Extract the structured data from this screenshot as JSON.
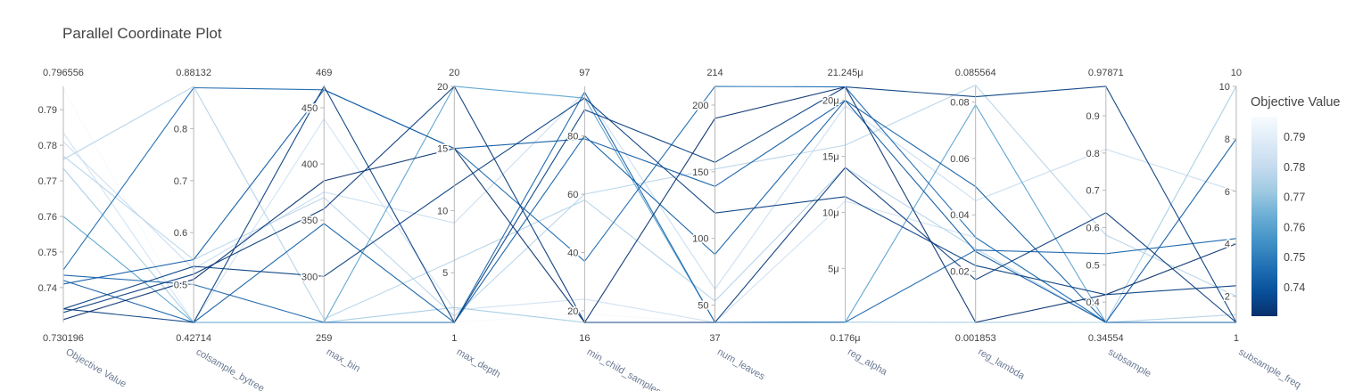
{
  "chart_data": {
    "type": "parallel_coordinates",
    "title": "Parallel Coordinate Plot",
    "colorbar": {
      "title": "Objective Value",
      "colorscale": [
        "#08306b",
        "#08519c",
        "#2171b5",
        "#4292c6",
        "#6baed6",
        "#9ecae1",
        "#c6dbef",
        "#deebf7",
        "#f7fbff"
      ],
      "ticks": [
        "0.79",
        "0.78",
        "0.77",
        "0.76",
        "0.75",
        "0.74"
      ],
      "range": [
        0.730196,
        0.796556
      ]
    },
    "axes": [
      {
        "label": "Objective Value",
        "min_label": "0.730196",
        "max_label": "0.796556",
        "range": [
          0.730196,
          0.796556
        ],
        "ticks": [
          {
            "v": 0.74,
            "t": "0.74"
          },
          {
            "v": 0.75,
            "t": "0.75"
          },
          {
            "v": 0.76,
            "t": "0.76"
          },
          {
            "v": 0.77,
            "t": "0.77"
          },
          {
            "v": 0.78,
            "t": "0.78"
          },
          {
            "v": 0.79,
            "t": "0.79"
          }
        ]
      },
      {
        "label": "colsample_bytree",
        "min_label": "0.42714",
        "max_label": "0.88132",
        "range": [
          0.42714,
          0.88132
        ],
        "ticks": [
          {
            "v": 0.5,
            "t": "0.5"
          },
          {
            "v": 0.6,
            "t": "0.6"
          },
          {
            "v": 0.7,
            "t": "0.7"
          },
          {
            "v": 0.8,
            "t": "0.8"
          }
        ]
      },
      {
        "label": "max_bin",
        "min_label": "259",
        "max_label": "469",
        "range": [
          259,
          469
        ],
        "ticks": [
          {
            "v": 300,
            "t": "300"
          },
          {
            "v": 350,
            "t": "350"
          },
          {
            "v": 400,
            "t": "400"
          },
          {
            "v": 450,
            "t": "450"
          }
        ]
      },
      {
        "label": "max_depth",
        "min_label": "1",
        "max_label": "20",
        "range": [
          1,
          20
        ],
        "ticks": [
          {
            "v": 5,
            "t": "5"
          },
          {
            "v": 10,
            "t": "10"
          },
          {
            "v": 15,
            "t": "15"
          },
          {
            "v": 20,
            "t": "20"
          }
        ]
      },
      {
        "label": "min_child_samples",
        "min_label": "16",
        "max_label": "97",
        "range": [
          16,
          97
        ],
        "ticks": [
          {
            "v": 20,
            "t": "20"
          },
          {
            "v": 40,
            "t": "40"
          },
          {
            "v": 60,
            "t": "60"
          },
          {
            "v": 80,
            "t": "80"
          }
        ]
      },
      {
        "label": "num_leaves",
        "min_label": "37",
        "max_label": "214",
        "range": [
          37,
          214
        ],
        "ticks": [
          {
            "v": 50,
            "t": "50"
          },
          {
            "v": 100,
            "t": "100"
          },
          {
            "v": 150,
            "t": "150"
          },
          {
            "v": 200,
            "t": "200"
          }
        ]
      },
      {
        "label": "reg_alpha",
        "min_label": "0.176μ",
        "max_label": "21.245μ",
        "range": [
          0.176,
          21.245
        ],
        "ticks": [
          {
            "v": 5,
            "t": "5μ"
          },
          {
            "v": 10,
            "t": "10μ"
          },
          {
            "v": 15,
            "t": "15μ"
          },
          {
            "v": 20,
            "t": "20μ"
          }
        ]
      },
      {
        "label": "reg_lambda",
        "min_label": "0.001853",
        "max_label": "0.085564",
        "range": [
          0.001853,
          0.085564
        ],
        "ticks": [
          {
            "v": 0.02,
            "t": "0.02"
          },
          {
            "v": 0.04,
            "t": "0.04"
          },
          {
            "v": 0.06,
            "t": "0.06"
          },
          {
            "v": 0.08,
            "t": "0.08"
          }
        ]
      },
      {
        "label": "subsample",
        "min_label": "0.34554",
        "max_label": "0.97871",
        "range": [
          0.34554,
          0.97871
        ],
        "ticks": [
          {
            "v": 0.4,
            "t": "0.4"
          },
          {
            "v": 0.5,
            "t": "0.5"
          },
          {
            "v": 0.6,
            "t": "0.6"
          },
          {
            "v": 0.7,
            "t": "0.7"
          },
          {
            "v": 0.8,
            "t": "0.8"
          },
          {
            "v": 0.9,
            "t": "0.9"
          }
        ]
      },
      {
        "label": "subsample_freq",
        "min_label": "1",
        "max_label": "10",
        "range": [
          1,
          10
        ],
        "ticks": [
          {
            "v": 2,
            "t": "2"
          },
          {
            "v": 4,
            "t": "4"
          },
          {
            "v": 6,
            "t": "6"
          },
          {
            "v": 8,
            "t": "8"
          },
          {
            "v": 10,
            "t": "10"
          }
        ]
      }
    ],
    "lines": [
      [
        0.7735,
        0.4271,
        259,
        2.2,
        16,
        37,
        0.2,
        0.0019,
        0.3455,
        10.0
      ],
      [
        0.796,
        0.4271,
        259,
        1.0,
        19,
        37,
        0.2,
        0.0019,
        0.3455,
        1.0
      ],
      [
        0.7835,
        0.4271,
        440,
        2.0,
        24,
        37,
        11.0,
        0.032,
        0.3455,
        1.0
      ],
      [
        0.7435,
        0.5,
        259,
        1.0,
        95,
        37,
        0.2,
        0.0275,
        0.53,
        4.2
      ],
      [
        0.742,
        0.4271,
        347,
        1.0,
        80,
        88,
        20.0,
        0.05,
        0.3455,
        1.0
      ],
      [
        0.76,
        0.4271,
        259,
        20.0,
        93,
        37,
        0.2,
        0.079,
        0.3455,
        1.0
      ],
      [
        0.734,
        0.4271,
        469,
        1.0,
        89,
        157,
        21.2,
        0.0819,
        0.9787,
        1.0
      ],
      [
        0.731,
        0.51,
        385,
        15.0,
        16,
        190,
        21.2,
        0.0019,
        0.42,
        4.0
      ],
      [
        0.733,
        0.52,
        360,
        20.0,
        16,
        37,
        14.0,
        0.017,
        0.64,
        1.0
      ],
      [
        0.745,
        0.8788,
        466,
        15.0,
        37,
        214,
        21.2,
        0.032,
        0.3455,
        1.0
      ],
      [
        0.734,
        0.535,
        300,
        12.0,
        93,
        119,
        11.4,
        0.022,
        0.42,
        2.4
      ],
      [
        0.741,
        0.548,
        466,
        15.0,
        79,
        139,
        20.0,
        0.027,
        0.3455,
        8.0
      ],
      [
        0.776,
        0.881,
        262,
        6.0,
        58,
        53,
        14.0,
        0.028,
        0.3455,
        1.3
      ],
      [
        0.781,
        0.53,
        375,
        9.0,
        95,
        62,
        19.5,
        0.045,
        0.81,
        6.0
      ],
      [
        0.777,
        0.548,
        370,
        1.5,
        60,
        152,
        16.0,
        0.086,
        0.58,
        2.0
      ]
    ]
  }
}
